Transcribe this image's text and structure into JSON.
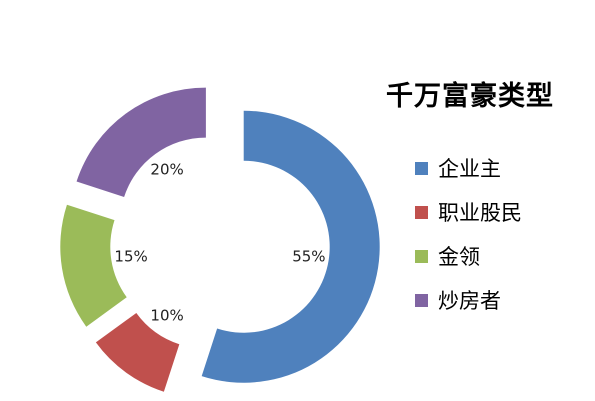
{
  "chart_data": {
    "type": "pie",
    "style": "exploded-donut",
    "title": "千万富豪类型",
    "legend_position": "right",
    "series": [
      {
        "name": "企业主",
        "value": 55,
        "label": "55%",
        "color": "#4F81BD"
      },
      {
        "name": "职业股民",
        "value": 10,
        "label": "10%",
        "color": "#C0504D"
      },
      {
        "name": "金领",
        "value": 15,
        "label": "15%",
        "color": "#9BBB59"
      },
      {
        "name": "炒房者",
        "value": 20,
        "label": "20%",
        "color": "#8064A2"
      }
    ]
  }
}
